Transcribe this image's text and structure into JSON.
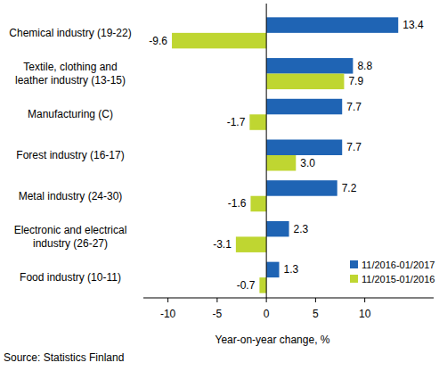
{
  "chart_data": {
    "type": "bar",
    "orientation": "horizontal",
    "categories": [
      "Chemical industry (19-22)",
      "Textile, clothing and\nleather industry (13-15)",
      "Manufacturing (C)",
      "Forest industry (16-17)",
      "Metal industry (24-30)",
      "Electronic and electrical\nindustry (26-27)",
      "Food industry (10-11)"
    ],
    "series": [
      {
        "name": "11/2016-01/2017",
        "color": "#1f64b4",
        "values": [
          13.4,
          8.8,
          7.7,
          7.7,
          7.2,
          2.3,
          1.3
        ],
        "value_labels": [
          "13.4",
          "8.8",
          "7.7",
          "7.7",
          "7.2",
          "2.3",
          "1.3"
        ]
      },
      {
        "name": "11/2015-01/2016",
        "color": "#bfd631",
        "values": [
          -9.6,
          7.9,
          -1.7,
          3.0,
          -1.6,
          -3.1,
          -0.7
        ],
        "value_labels": [
          "-9.6",
          "7.9",
          "-1.7",
          "3.0",
          "-1.6",
          "-3.1",
          "-0.7"
        ]
      }
    ],
    "x_label": "Year-on-year change, %",
    "source": "Source: Statistics Finland",
    "xlim": [
      -12.5,
      17
    ],
    "xticks": [
      -10,
      -5,
      0,
      5,
      10
    ],
    "grid": false,
    "legend": "lower right",
    "data_labels": true
  }
}
